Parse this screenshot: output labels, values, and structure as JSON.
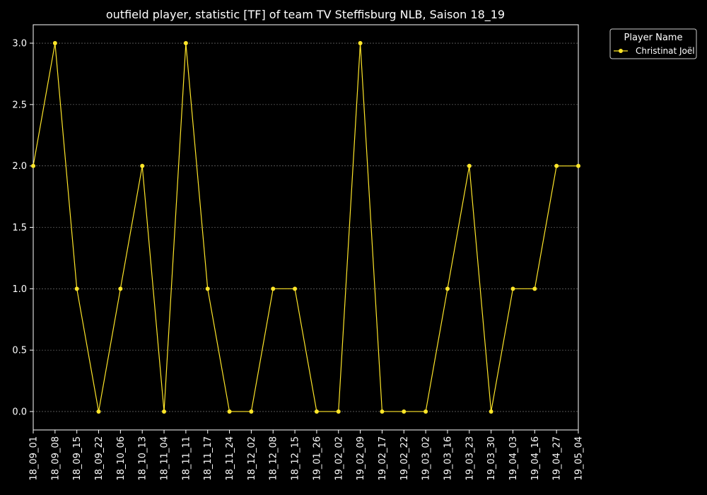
{
  "chart_data": {
    "type": "line",
    "title": "outfield player, statistic [TF] of team TV Steffisburg NLB, Saison 18_19",
    "xlabel": "",
    "ylabel": "",
    "categories": [
      "18_09_01",
      "18_09_08",
      "18_09_15",
      "18_09_22",
      "18_10_06",
      "18_10_13",
      "18_11_04",
      "18_11_11",
      "18_11_17",
      "18_11_24",
      "18_12_02",
      "18_12_08",
      "18_12_15",
      "19_01_26",
      "19_02_02",
      "19_02_09",
      "19_02_17",
      "19_02_22",
      "19_03_02",
      "19_03_16",
      "19_03_23",
      "19_03_30",
      "19_04_03",
      "19_04_16",
      "19_04_27",
      "19_05_04"
    ],
    "series": [
      {
        "name": "Christinat Joël",
        "color": "#ffe629",
        "values": [
          2,
          3,
          1,
          0,
          1,
          2,
          0,
          3,
          1,
          0,
          0,
          1,
          1,
          0,
          0,
          3,
          0,
          0,
          0,
          1,
          2,
          0,
          1,
          1,
          2,
          2
        ]
      }
    ],
    "ylim": [
      -0.15,
      3.15
    ],
    "yticks": [
      "0.0",
      "0.5",
      "1.0",
      "1.5",
      "2.0",
      "2.5",
      "3.0"
    ],
    "grid": true,
    "legend": {
      "title": "Player Name",
      "position": "outside-top-right"
    },
    "colors": {
      "background": "#000000",
      "foreground": "#ffffff",
      "grid": "#888888",
      "line": "#ffe629"
    }
  }
}
